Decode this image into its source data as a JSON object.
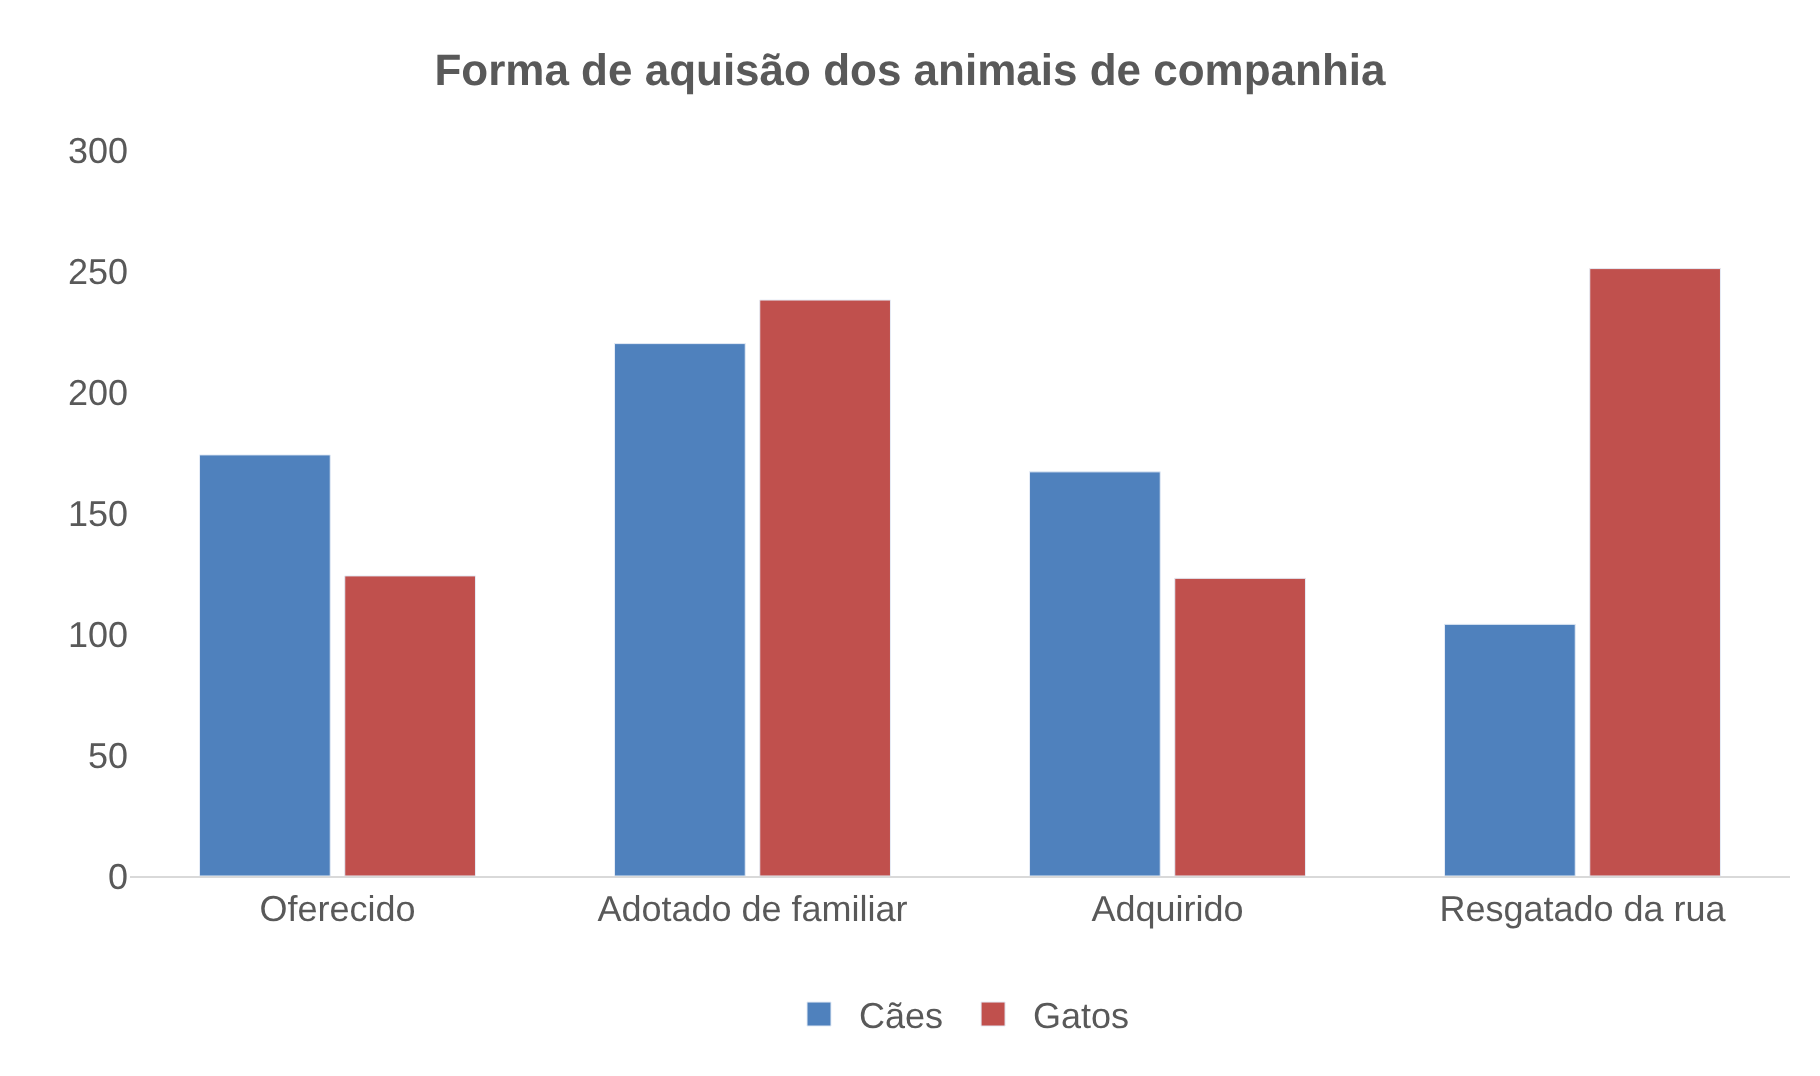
{
  "chart_data": {
    "type": "bar",
    "title": "Forma de aquisão dos animais de companhia",
    "categories": [
      "Oferecido",
      "Adotado de familiar",
      "Adquirido",
      "Resgatado da rua"
    ],
    "series": [
      {
        "name": "Cães",
        "color": "#4f81bd",
        "values": [
          174,
          220,
          167,
          104
        ]
      },
      {
        "name": "Gatos",
        "color": "#c0504d",
        "values": [
          124,
          238,
          123,
          251
        ]
      }
    ],
    "ylim": [
      0,
      300
    ],
    "yticks": [
      0,
      50,
      100,
      150,
      200,
      250,
      300
    ],
    "grid": false,
    "legend": "bottom"
  }
}
